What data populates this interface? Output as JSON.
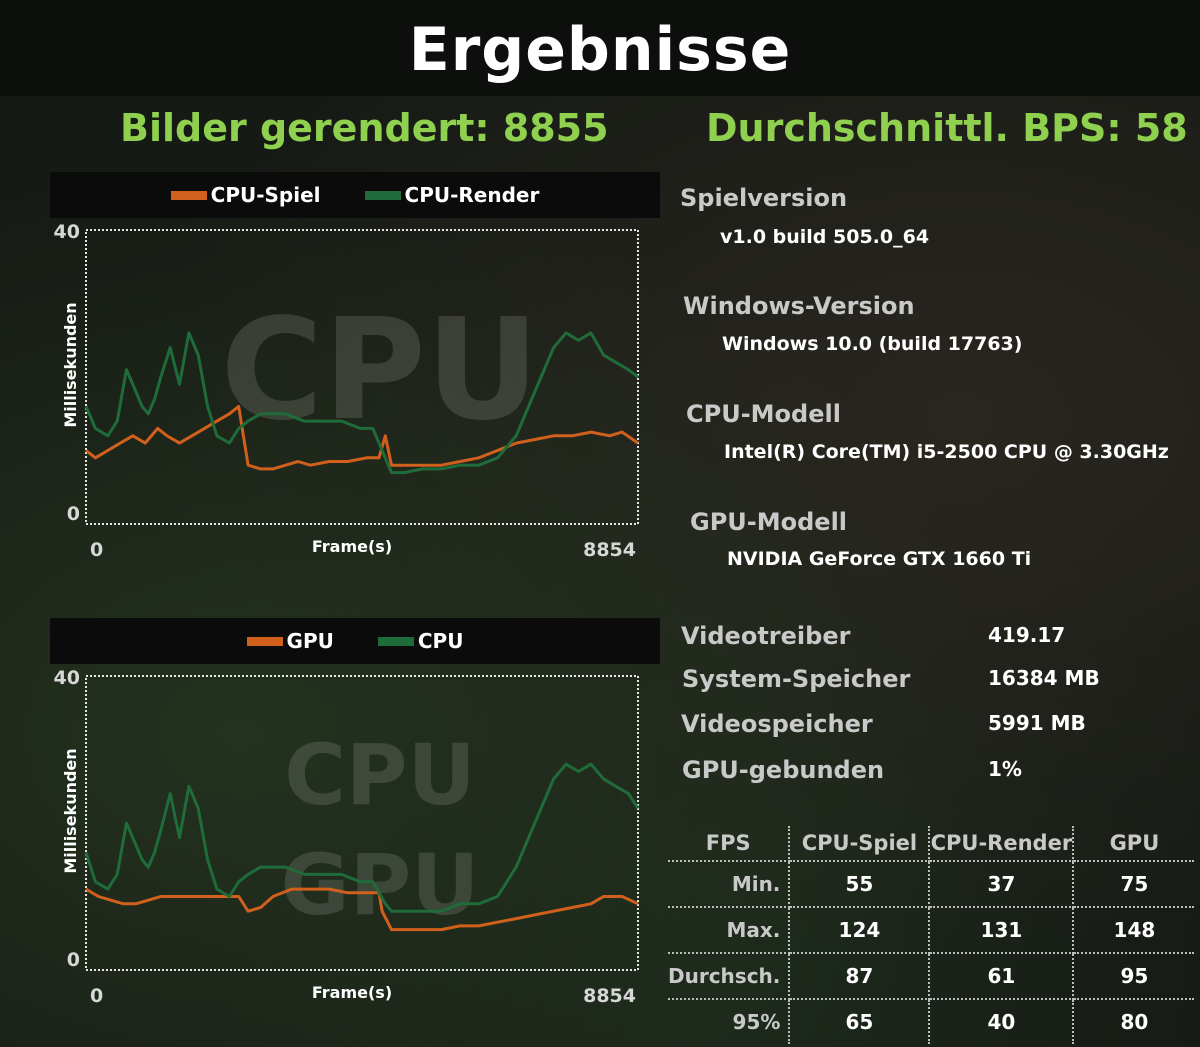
{
  "title": "Ergebnisse",
  "headline": {
    "frames_rendered": "Bilder gerendert: 8855",
    "avg_fps": "Durchschnittl. BPS: 58"
  },
  "colors": {
    "orange": "#d0601c",
    "green": "#1f6b3a",
    "accent": "#8fd14f"
  },
  "info": {
    "game_version_label": "Spielversion",
    "game_version": "v1.0 build 505.0_64",
    "windows_label": "Windows-Version",
    "windows": "Windows 10.0 (build 17763)",
    "cpu_label": "CPU-Modell",
    "cpu": "Intel(R) Core(TM) i5-2500 CPU @ 3.30GHz",
    "gpu_label": "GPU-Modell",
    "gpu": "NVIDIA GeForce GTX 1660 Ti"
  },
  "stats": [
    {
      "label": "Videotreiber",
      "value": "419.17"
    },
    {
      "label": "System-Speicher",
      "value": "16384 MB"
    },
    {
      "label": "Videospeicher",
      "value": "5991 MB"
    },
    {
      "label": "GPU-gebunden",
      "value": "1%"
    }
  ],
  "fps_table": {
    "headers": [
      "FPS",
      "CPU-Spiel",
      "CPU-Render",
      "GPU"
    ],
    "rows": [
      {
        "label": "Min.",
        "values": [
          "55",
          "37",
          "75"
        ]
      },
      {
        "label": "Max.",
        "values": [
          "124",
          "131",
          "148"
        ]
      },
      {
        "label": "Durchsch.",
        "values": [
          "87",
          "61",
          "95"
        ]
      },
      {
        "label": "95%",
        "values": [
          "65",
          "40",
          "80"
        ]
      }
    ]
  },
  "chart_data": [
    {
      "type": "line",
      "watermark": "CPU",
      "ylabel": "Millisekunden",
      "xlabel": "Frame(s)",
      "ylim": [
        0,
        40
      ],
      "xlim": [
        0,
        8854
      ],
      "yticks": [
        "40",
        "0"
      ],
      "xticks": [
        "0",
        "8854"
      ],
      "grid": false,
      "legend": "top",
      "series": [
        {
          "name": "CPU-Spiel",
          "color": "#d0601c",
          "x": [
            0,
            150,
            350,
            550,
            750,
            950,
            1150,
            1300,
            1500,
            1700,
            1900,
            2100,
            2300,
            2450,
            2600,
            2800,
            3000,
            3200,
            3400,
            3600,
            3900,
            4200,
            4500,
            4700,
            4800,
            4900,
            5100,
            5400,
            5700,
            6000,
            6300,
            6600,
            6900,
            7200,
            7500,
            7800,
            8100,
            8400,
            8600,
            8854
          ],
          "y": [
            10,
            9,
            10,
            11,
            12,
            11,
            13,
            12,
            11,
            12,
            13,
            14,
            15,
            16,
            8,
            7.5,
            7.5,
            8,
            8.5,
            8,
            8.5,
            8.5,
            9,
            9,
            12,
            8,
            8,
            8,
            8,
            8.5,
            9,
            10,
            11,
            11.5,
            12,
            12,
            12.5,
            12,
            12.5,
            11
          ]
        },
        {
          "name": "CPU-Render",
          "color": "#1f6b3a",
          "x": [
            0,
            150,
            350,
            500,
            650,
            800,
            900,
            1000,
            1100,
            1200,
            1350,
            1500,
            1650,
            1800,
            1950,
            2100,
            2300,
            2450,
            2600,
            2800,
            3000,
            3200,
            3500,
            3800,
            4100,
            4400,
            4600,
            4800,
            4900,
            5100,
            5400,
            5700,
            6000,
            6300,
            6600,
            6900,
            7100,
            7300,
            7500,
            7700,
            7900,
            8100,
            8300,
            8500,
            8700,
            8854
          ],
          "y": [
            16,
            13,
            12,
            14,
            21,
            18,
            16,
            15,
            17,
            20,
            24,
            19,
            26,
            23,
            16,
            12,
            11,
            13,
            14,
            15,
            15,
            15,
            14,
            14,
            14,
            13,
            13,
            9,
            7,
            7,
            7.5,
            7.5,
            8,
            8,
            9,
            12,
            16,
            20,
            24,
            26,
            25,
            26,
            23,
            22,
            21,
            20
          ]
        }
      ]
    },
    {
      "type": "line",
      "watermark": "CPU\nGPU",
      "ylabel": "Millisekunden",
      "xlabel": "Frame(s)",
      "ylim": [
        0,
        40
      ],
      "xlim": [
        0,
        8854
      ],
      "yticks": [
        "40",
        "0"
      ],
      "xticks": [
        "0",
        "8854"
      ],
      "grid": false,
      "legend": "top",
      "series": [
        {
          "name": "GPU",
          "color": "#d0601c",
          "x": [
            0,
            200,
            400,
            600,
            800,
            1000,
            1200,
            1400,
            1600,
            1800,
            2000,
            2200,
            2450,
            2600,
            2800,
            3000,
            3300,
            3600,
            3900,
            4200,
            4500,
            4700,
            4750,
            4900,
            5100,
            5400,
            5700,
            6000,
            6300,
            6600,
            6900,
            7200,
            7500,
            7800,
            8100,
            8300,
            8600,
            8854
          ],
          "y": [
            11,
            10,
            9.5,
            9,
            9,
            9.5,
            10,
            10,
            10,
            10,
            10,
            10,
            10,
            8,
            8.5,
            10,
            11,
            11,
            11,
            10.5,
            10.5,
            10.5,
            8,
            5.5,
            5.5,
            5.5,
            5.5,
            6,
            6,
            6.5,
            7,
            7.5,
            8,
            8.5,
            9,
            10,
            10,
            9
          ]
        },
        {
          "name": "CPU",
          "color": "#1f6b3a",
          "x": [
            0,
            150,
            350,
            500,
            650,
            800,
            900,
            1000,
            1100,
            1200,
            1350,
            1500,
            1650,
            1800,
            1950,
            2100,
            2300,
            2450,
            2600,
            2800,
            3000,
            3200,
            3500,
            3800,
            4100,
            4400,
            4600,
            4800,
            4900,
            5100,
            5400,
            5700,
            6000,
            6300,
            6600,
            6900,
            7100,
            7300,
            7500,
            7700,
            7900,
            8100,
            8300,
            8500,
            8700,
            8854
          ],
          "y": [
            16,
            12,
            11,
            13,
            20,
            17,
            15,
            14,
            16,
            19,
            24,
            18,
            25,
            22,
            15,
            11,
            10,
            12,
            13,
            14,
            14,
            14,
            13,
            13,
            13,
            12,
            12,
            9,
            8,
            8,
            8,
            8,
            9,
            9,
            10,
            14,
            18,
            22,
            26,
            28,
            27,
            28,
            26,
            25,
            24,
            22
          ]
        }
      ]
    }
  ]
}
